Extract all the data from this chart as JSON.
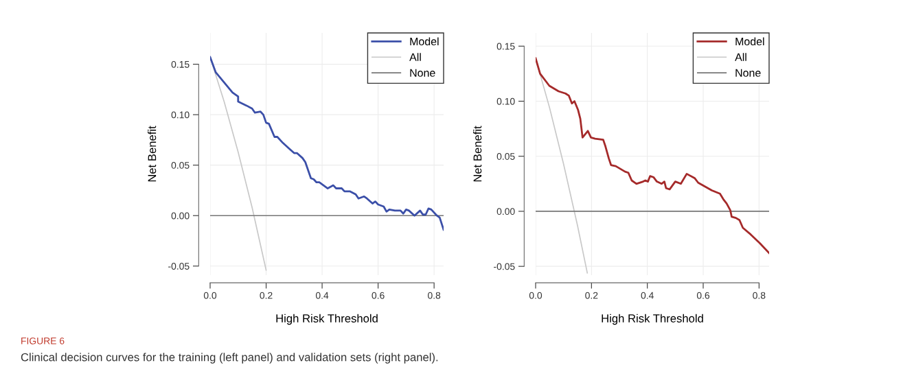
{
  "chart_data": [
    {
      "type": "line",
      "xlabel": "High Risk Threshold",
      "ylabel": "Net Benefit",
      "xlim": [
        0,
        0.834
      ],
      "ylim": [
        -0.059,
        0.181
      ],
      "xticks": [
        {
          "value": 0,
          "label": "0.0"
        },
        {
          "value": 0.2,
          "label": "0.2"
        },
        {
          "value": 0.4,
          "label": "0.4"
        },
        {
          "value": 0.6,
          "label": "0.6"
        },
        {
          "value": 0.8,
          "label": "0.8"
        }
      ],
      "yticks": [
        {
          "value": -0.05,
          "label": "-0.05"
        },
        {
          "value": 0,
          "label": "0.00"
        },
        {
          "value": 0.05,
          "label": "0.05"
        },
        {
          "value": 0.1,
          "label": "0.10"
        },
        {
          "value": 0.15,
          "label": "0.15"
        }
      ],
      "grid": true,
      "legend": "top right",
      "annotations": [
        "FIGURE 6",
        "Clinical decision curves for the training (left panel) and validation sets (right panel)."
      ],
      "series": [
        {
          "name": "Model",
          "color": "#3b4fa8",
          "x": [
            0,
            0.02,
            0.05,
            0.08,
            0.1,
            0.1,
            0.13,
            0.15,
            0.16,
            0.18,
            0.19,
            0.2,
            0.21,
            0.23,
            0.24,
            0.26,
            0.28,
            0.3,
            0.31,
            0.33,
            0.34,
            0.36,
            0.37,
            0.38,
            0.39,
            0.4,
            0.42,
            0.44,
            0.45,
            0.47,
            0.48,
            0.5,
            0.52,
            0.53,
            0.55,
            0.56,
            0.58,
            0.59,
            0.6,
            0.62,
            0.63,
            0.64,
            0.66,
            0.68,
            0.69,
            0.7,
            0.71,
            0.73,
            0.75,
            0.76,
            0.77,
            0.78,
            0.79,
            0.81,
            0.82,
            0.834
          ],
          "values": [
            0.157,
            0.142,
            0.132,
            0.122,
            0.118,
            0.113,
            0.109,
            0.106,
            0.102,
            0.103,
            0.1,
            0.092,
            0.091,
            0.078,
            0.078,
            0.072,
            0.067,
            0.062,
            0.062,
            0.057,
            0.053,
            0.037,
            0.036,
            0.033,
            0.033,
            0.031,
            0.027,
            0.03,
            0.027,
            0.027,
            0.024,
            0.024,
            0.021,
            0.017,
            0.019,
            0.017,
            0.012,
            0.014,
            0.011,
            0.009,
            0.004,
            0.006,
            0.005,
            0.005,
            0.002,
            0.006,
            0.005,
            0.0,
            0.005,
            0.001,
            0.001,
            0.007,
            0.006,
            0.0,
            -0.002,
            -0.014
          ]
        },
        {
          "name": "All",
          "color": "#c8c8c8",
          "x": [
            0,
            0.05,
            0.1,
            0.15,
            0.2
          ],
          "values": [
            0.157,
            0.113,
            0.063,
            0.008,
            -0.054
          ]
        },
        {
          "name": "None",
          "color": "#777777",
          "x": [
            0,
            0.834
          ],
          "values": [
            0,
            0
          ]
        }
      ]
    },
    {
      "type": "line",
      "xlabel": "High Risk Threshold",
      "ylabel": "Net Benefit",
      "xlim": [
        0,
        0.836
      ],
      "ylim": [
        -0.058,
        0.162
      ],
      "xticks": [
        {
          "value": 0,
          "label": "0.0"
        },
        {
          "value": 0.2,
          "label": "0.2"
        },
        {
          "value": 0.4,
          "label": "0.4"
        },
        {
          "value": 0.6,
          "label": "0.6"
        },
        {
          "value": 0.8,
          "label": "0.8"
        }
      ],
      "yticks": [
        {
          "value": -0.05,
          "label": "-0.05"
        },
        {
          "value": 0,
          "label": "0.00"
        },
        {
          "value": 0.05,
          "label": "0.05"
        },
        {
          "value": 0.1,
          "label": "0.10"
        },
        {
          "value": 0.15,
          "label": "0.15"
        }
      ],
      "grid": true,
      "legend": "top right",
      "series": [
        {
          "name": "Model",
          "color": "#a52a2a",
          "x": [
            0,
            0.016,
            0.049,
            0.082,
            0.107,
            0.119,
            0.13,
            0.139,
            0.152,
            0.16,
            0.168,
            0.187,
            0.198,
            0.213,
            0.242,
            0.25,
            0.262,
            0.27,
            0.287,
            0.32,
            0.332,
            0.344,
            0.361,
            0.385,
            0.393,
            0.402,
            0.41,
            0.422,
            0.434,
            0.451,
            0.461,
            0.467,
            0.48,
            0.5,
            0.52,
            0.541,
            0.57,
            0.582,
            0.631,
            0.66,
            0.672,
            0.684,
            0.697,
            0.702,
            0.717,
            0.73,
            0.742,
            0.77,
            0.803,
            0.836
          ],
          "values": [
            0.139,
            0.125,
            0.114,
            0.109,
            0.107,
            0.105,
            0.098,
            0.1,
            0.092,
            0.084,
            0.067,
            0.073,
            0.067,
            0.066,
            0.065,
            0.059,
            0.048,
            0.042,
            0.041,
            0.036,
            0.035,
            0.028,
            0.025,
            0.027,
            0.028,
            0.027,
            0.032,
            0.031,
            0.027,
            0.025,
            0.027,
            0.021,
            0.02,
            0.027,
            0.025,
            0.034,
            0.03,
            0.026,
            0.019,
            0.016,
            0.011,
            0.007,
            0.001,
            -0.005,
            -0.006,
            -0.008,
            -0.015,
            -0.021,
            -0.029,
            -0.038
          ]
        },
        {
          "name": "All",
          "color": "#c8c8c8",
          "x": [
            0,
            0.05,
            0.1,
            0.15,
            0.185
          ],
          "values": [
            0.139,
            0.094,
            0.043,
            -0.013,
            -0.056
          ]
        },
        {
          "name": "None",
          "color": "#777777",
          "x": [
            0,
            0.836
          ],
          "values": [
            0,
            0
          ]
        }
      ]
    }
  ]
}
